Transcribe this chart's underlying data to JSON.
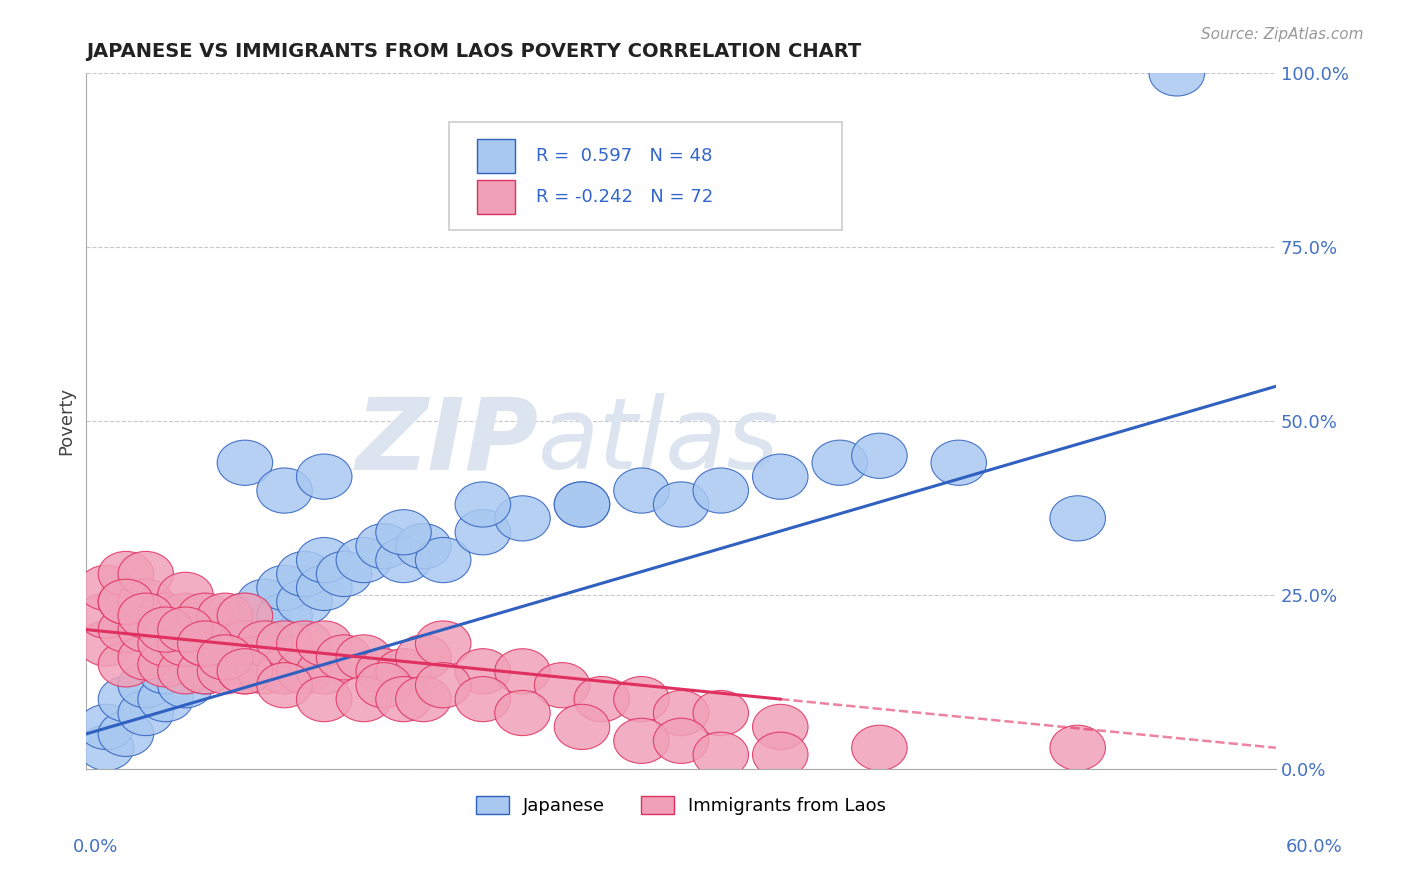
{
  "title": "JAPANESE VS IMMIGRANTS FROM LAOS POVERTY CORRELATION CHART",
  "source": "Source: ZipAtlas.com",
  "xlabel_bottom_left": "0.0%",
  "xlabel_bottom_right": "60.0%",
  "ylabel": "Poverty",
  "ytick_labels": [
    "0.0%",
    "25.0%",
    "50.0%",
    "75.0%",
    "100.0%"
  ],
  "ytick_values": [
    0,
    25,
    50,
    75,
    100
  ],
  "xlim": [
    0,
    60
  ],
  "ylim": [
    0,
    100
  ],
  "color_japanese": "#A8C8F0",
  "color_laos": "#F0A0B8",
  "color_line_japanese": "#3060C0",
  "color_line_laos": "#E03060",
  "color_grid": "#C8C8D0",
  "color_watermark": "#DCE4F0",
  "jp_line_x0": 0,
  "jp_line_y0": 5,
  "jp_line_x1": 60,
  "jp_line_y1": 55,
  "lao_line_x0": 0,
  "lao_line_y0": 20,
  "lao_line_x1": 35,
  "lao_line_y1": 10,
  "lao_line_dash_x0": 35,
  "lao_line_dash_y0": 10,
  "lao_line_dash_x1": 60,
  "lao_line_dash_y1": 3,
  "japanese_x": [
    1,
    1,
    2,
    2,
    3,
    3,
    4,
    4,
    5,
    5,
    6,
    6,
    7,
    7,
    8,
    8,
    9,
    9,
    10,
    10,
    11,
    11,
    12,
    12,
    13,
    14,
    15,
    16,
    17,
    18,
    20,
    22,
    25,
    28,
    30,
    32,
    35,
    38,
    40,
    44,
    50,
    55,
    8,
    10,
    12,
    16,
    20,
    25
  ],
  "japanese_y": [
    3,
    6,
    5,
    10,
    8,
    12,
    10,
    14,
    12,
    16,
    14,
    18,
    16,
    20,
    18,
    22,
    20,
    24,
    22,
    26,
    24,
    28,
    26,
    30,
    28,
    30,
    32,
    30,
    32,
    30,
    34,
    36,
    38,
    40,
    38,
    40,
    42,
    44,
    45,
    44,
    36,
    100,
    44,
    40,
    42,
    34,
    38,
    38
  ],
  "laos_x": [
    1,
    1,
    1,
    2,
    2,
    2,
    2,
    3,
    3,
    3,
    3,
    4,
    4,
    4,
    5,
    5,
    5,
    5,
    6,
    6,
    6,
    7,
    7,
    7,
    8,
    8,
    8,
    9,
    9,
    10,
    10,
    11,
    11,
    12,
    12,
    13,
    14,
    15,
    16,
    17,
    18,
    20,
    22,
    24,
    26,
    28,
    30,
    32,
    35,
    2,
    3,
    4,
    5,
    6,
    7,
    8,
    10,
    12,
    14,
    15,
    16,
    17,
    18,
    20,
    22,
    25,
    28,
    30,
    32,
    35,
    40,
    50
  ],
  "laos_y": [
    18,
    22,
    26,
    15,
    20,
    24,
    28,
    16,
    20,
    24,
    28,
    15,
    18,
    22,
    14,
    18,
    22,
    25,
    14,
    18,
    22,
    14,
    18,
    22,
    14,
    18,
    22,
    14,
    18,
    14,
    18,
    14,
    18,
    14,
    18,
    16,
    16,
    14,
    14,
    16,
    18,
    14,
    14,
    12,
    10,
    10,
    8,
    8,
    6,
    24,
    22,
    20,
    20,
    18,
    16,
    14,
    12,
    10,
    10,
    12,
    10,
    10,
    12,
    10,
    8,
    6,
    4,
    4,
    2,
    2,
    3,
    3
  ]
}
